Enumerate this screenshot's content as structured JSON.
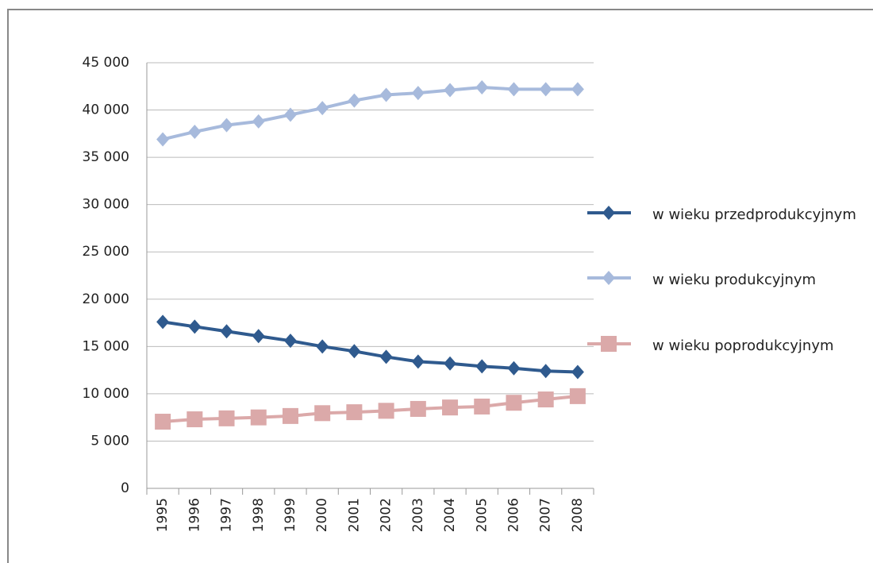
{
  "chart_data": {
    "type": "line",
    "categories": [
      "1995",
      "1996",
      "1997",
      "1998",
      "1999",
      "2000",
      "2001",
      "2002",
      "2003",
      "2004",
      "2005",
      "2006",
      "2007",
      "2008"
    ],
    "series": [
      {
        "name": "w wieku przedprodukcyjnym",
        "color": "#2f5a8e",
        "marker": "diamond",
        "values": [
          17600,
          17100,
          16600,
          16100,
          15600,
          15000,
          14500,
          13900,
          13400,
          13200,
          12900,
          12700,
          12400,
          12300
        ]
      },
      {
        "name": "w wieku produkcyjnym",
        "color": "#a7badc",
        "marker": "diamond",
        "values": [
          36900,
          37700,
          38400,
          38800,
          39500,
          40200,
          41000,
          41600,
          41800,
          42100,
          42400,
          42200,
          42200,
          42200
        ]
      },
      {
        "name": "w wieku poprodukcyjnym",
        "color": "#dba9a9",
        "marker": "square",
        "values": [
          7050,
          7300,
          7400,
          7500,
          7650,
          7950,
          8050,
          8200,
          8400,
          8550,
          8650,
          9050,
          9400,
          9750
        ]
      }
    ],
    "ylim": [
      0,
      45000
    ],
    "yticks": [
      0,
      {
        "value": 5000,
        "label": "5 000"
      },
      {
        "value": 10000,
        "label": "10 000"
      },
      {
        "value": 15000,
        "label": "15 000"
      },
      {
        "value": 20000,
        "label": "20 000"
      },
      {
        "value": 25000,
        "label": "25 000"
      },
      {
        "value": 30000,
        "label": "30 000"
      },
      {
        "value": 35000,
        "label": "35 000"
      },
      {
        "value": 40000,
        "label": "40 000"
      },
      {
        "value": 45000,
        "label": "45 000"
      }
    ],
    "grid": true,
    "legend": "right"
  }
}
